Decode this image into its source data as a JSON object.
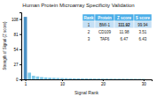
{
  "chart_data": {
    "type": "bar",
    "title": "Human Protein Microarray Specificity Validation",
    "xlabel": "Signal Rank",
    "ylabel": "Strength of Signal (Z score)",
    "x": [
      1,
      2,
      3,
      4,
      5,
      6,
      7,
      8,
      9,
      10,
      11,
      12,
      13,
      14,
      15,
      16,
      17,
      18,
      19,
      20,
      21,
      22,
      23,
      24,
      25,
      26,
      27,
      28,
      29,
      30
    ],
    "values": [
      111.92,
      11.98,
      6.47,
      5.2,
      4.1,
      3.5,
      3.0,
      2.8,
      2.5,
      2.3,
      2.1,
      1.9,
      1.8,
      1.7,
      1.6,
      1.5,
      1.4,
      1.35,
      1.3,
      1.25,
      1.2,
      1.15,
      1.1,
      1.05,
      1.0,
      0.95,
      0.9,
      0.85,
      0.8,
      0.75
    ],
    "colors": [
      "#4a90c4",
      "#7ec8e8",
      "#7ec8e8",
      "#7ec8e8",
      "#7ec8e8",
      "#7ec8e8",
      "#7ec8e8",
      "#7ec8e8",
      "#7ec8e8",
      "#7ec8e8",
      "#7ec8e8",
      "#7ec8e8",
      "#7ec8e8",
      "#7ec8e8",
      "#7ec8e8",
      "#7ec8e8",
      "#7ec8e8",
      "#7ec8e8",
      "#7ec8e8",
      "#7ec8e8",
      "#7ec8e8",
      "#7ec8e8",
      "#7ec8e8",
      "#7ec8e8",
      "#7ec8e8",
      "#7ec8e8",
      "#7ec8e8",
      "#7ec8e8",
      "#7ec8e8",
      "#7ec8e8"
    ],
    "xlim": [
      0,
      32
    ],
    "xticks": [
      1,
      10,
      20,
      30
    ],
    "ylim": [
      0,
      120
    ],
    "yticks": [
      0,
      27,
      54,
      81,
      108
    ],
    "table": {
      "columns": [
        "Rank",
        "Protein",
        "Z score",
        "S score"
      ],
      "rows": [
        [
          "1",
          "BMI-1",
          "111.92",
          "99.94"
        ],
        [
          "2",
          "CD109",
          "11.98",
          "3.51"
        ],
        [
          "3",
          "TAF6",
          "6.47",
          "6.43"
        ]
      ]
    }
  }
}
